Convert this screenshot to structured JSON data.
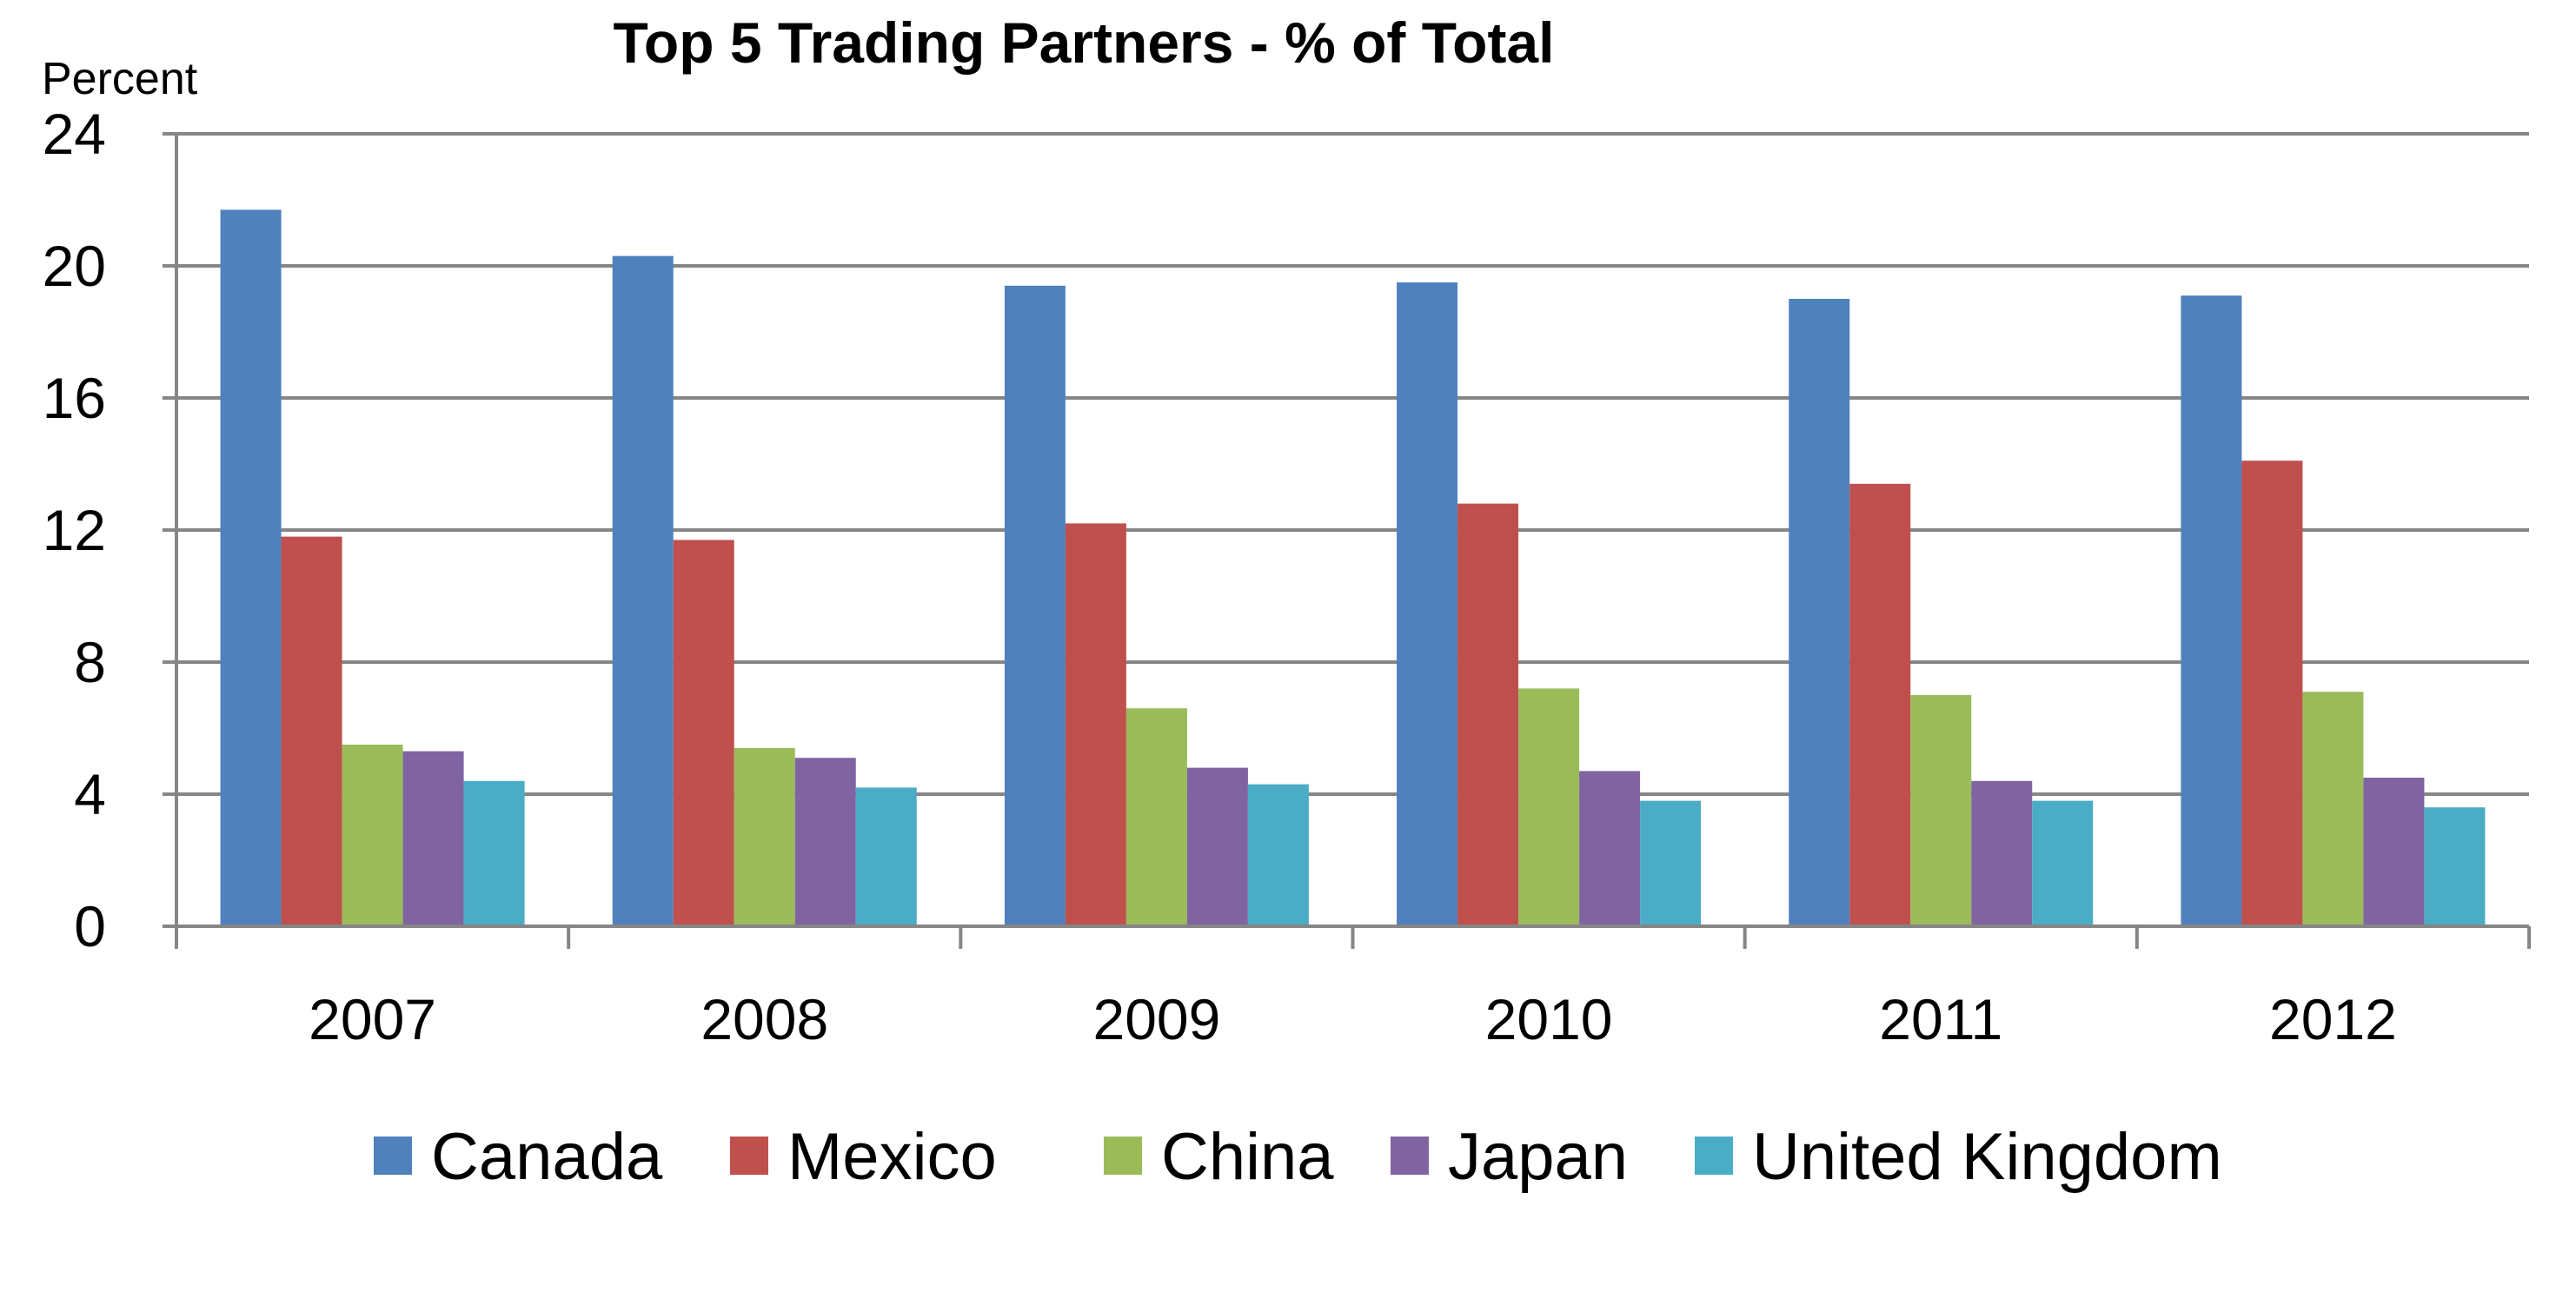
{
  "chart_data": {
    "type": "bar",
    "title": "Top 5 Trading Partners - % of Total",
    "ylabel": "Percent",
    "xlabel": "",
    "ylim": [
      0,
      24
    ],
    "yticks": [
      "0",
      "4",
      "8",
      "12",
      "16",
      "20",
      "24"
    ],
    "grid": true,
    "legend_position": "bottom",
    "categories": [
      "2007",
      "2008",
      "2009",
      "2010",
      "2011",
      "2012"
    ],
    "series": [
      {
        "name": "Canada",
        "color": "#4F81BD",
        "values": [
          21.7,
          20.3,
          19.4,
          19.5,
          19.0,
          19.1
        ]
      },
      {
        "name": "Mexico",
        "color": "#C0504D",
        "values": [
          11.8,
          11.7,
          12.2,
          12.8,
          13.4,
          14.1
        ]
      },
      {
        "name": "China",
        "color": "#9BBB59",
        "values": [
          5.5,
          5.4,
          6.6,
          7.2,
          7.0,
          7.1
        ]
      },
      {
        "name": "Japan",
        "color": "#8064A2",
        "values": [
          5.3,
          5.1,
          4.8,
          4.7,
          4.4,
          4.5
        ]
      },
      {
        "name": "United Kingdom",
        "color": "#4BACC6",
        "values": [
          4.4,
          4.2,
          4.3,
          3.8,
          3.8,
          3.6
        ]
      }
    ]
  }
}
